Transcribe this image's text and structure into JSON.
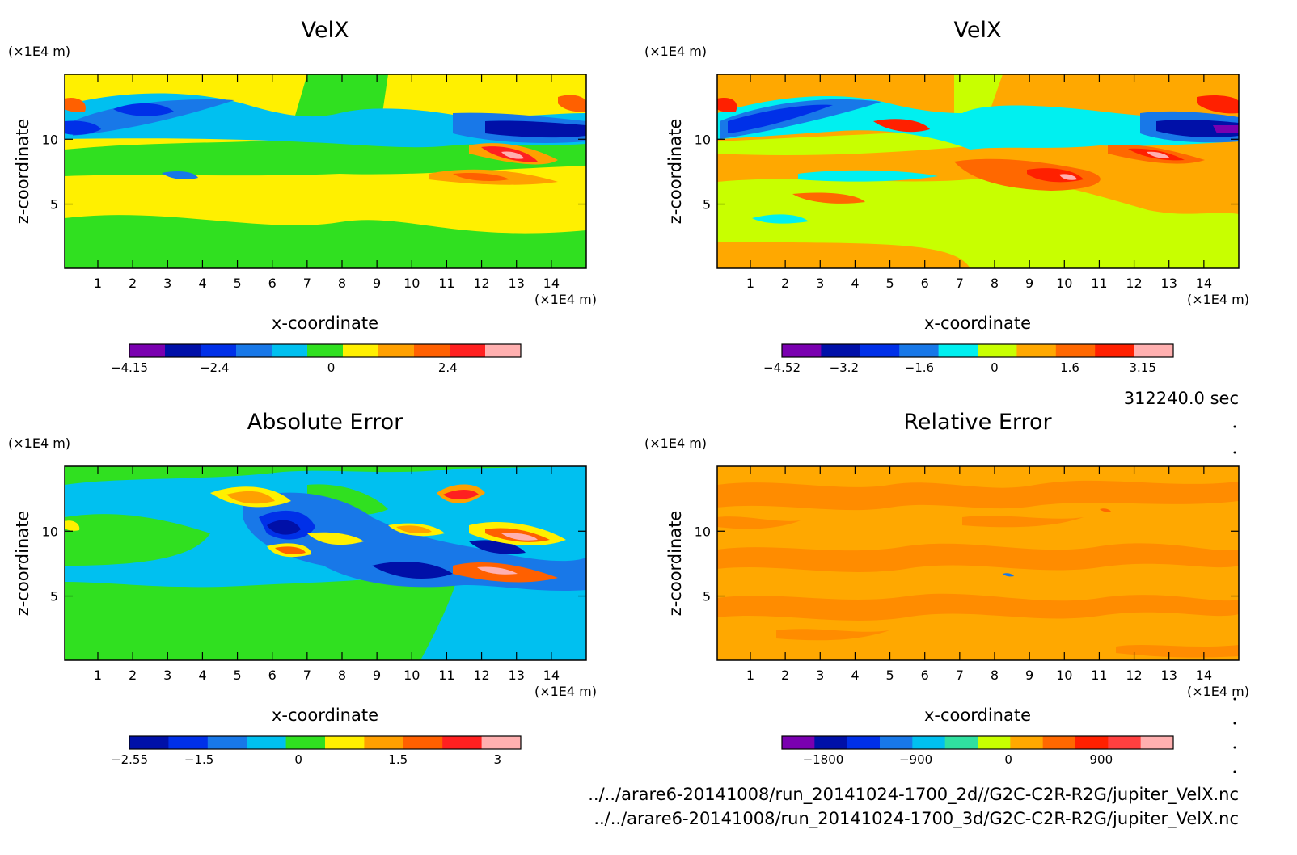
{
  "time_label": "312240.0 sec",
  "files": [
    "../../arare6-20141008/run_20141024-1700_2d//G2C-C2R-R2G/jupiter_VelX.nc",
    "../../arare6-20141008/run_20141024-1700_3d/G2C-C2R-R2G/jupiter_VelX.nc"
  ],
  "chart_data": [
    {
      "type": "heatmap",
      "title": "VelX",
      "xlabel": "x-coordinate",
      "ylabel": "z-coordinate",
      "x_unit": "(×1E4 m)",
      "y_unit": "(×1E4 m)",
      "xlim": [
        0.05,
        15
      ],
      "ylim": [
        0.05,
        15
      ],
      "x_ticks": [
        1,
        2,
        3,
        4,
        5,
        6,
        7,
        8,
        9,
        10,
        11,
        12,
        13,
        14
      ],
      "y_ticks": [
        5,
        10
      ],
      "colorbar": {
        "colors": [
          "#7a00b0",
          "#0010a8",
          "#0030e8",
          "#1878e8",
          "#00c0f0",
          "#30e020",
          "#fff000",
          "#ffa000",
          "#ff6000",
          "#ff2020",
          "#ffb0b0"
        ],
        "tick_values": [
          -4.15,
          -2.4,
          0,
          2.4
        ],
        "tick_labels": [
          "-4.15",
          "-2.4",
          "0",
          "2.4"
        ],
        "range": [
          -4.15,
          3.9
        ]
      }
    },
    {
      "type": "heatmap",
      "title": "VelX",
      "xlabel": "x-coordinate",
      "ylabel": "z-coordinate",
      "x_unit": "(×1E4 m)",
      "y_unit": "(×1E4 m)",
      "xlim": [
        0.05,
        15
      ],
      "ylim": [
        0.05,
        15
      ],
      "x_ticks": [
        1,
        2,
        3,
        4,
        5,
        6,
        7,
        8,
        9,
        10,
        11,
        12,
        13,
        14
      ],
      "y_ticks": [
        5,
        10
      ],
      "colorbar": {
        "colors": [
          "#7a00b0",
          "#0010a8",
          "#0030e8",
          "#1878e8",
          "#00f0f0",
          "#c8ff00",
          "#ffa800",
          "#ff6800",
          "#ff2000",
          "#ffb0b0"
        ],
        "tick_values": [
          -4.52,
          -3.2,
          -1.6,
          0,
          1.6,
          3.15
        ],
        "tick_labels": [
          "-4.52",
          "-3.2",
          "-1.6",
          "0",
          "1.6",
          "3.15"
        ],
        "range": [
          -4.52,
          3.8
        ]
      }
    },
    {
      "type": "heatmap",
      "title": "Absolute Error",
      "xlabel": "x-coordinate",
      "ylabel": "z-coordinate",
      "x_unit": "(×1E4 m)",
      "y_unit": "(×1E4 m)",
      "xlim": [
        0.05,
        15
      ],
      "ylim": [
        0.05,
        15
      ],
      "x_ticks": [
        1,
        2,
        3,
        4,
        5,
        6,
        7,
        8,
        9,
        10,
        11,
        12,
        13,
        14
      ],
      "y_ticks": [
        5,
        10
      ],
      "colorbar": {
        "colors": [
          "#0010a8",
          "#0030e8",
          "#1878e8",
          "#00c0f0",
          "#30e020",
          "#fff000",
          "#ffa000",
          "#ff6000",
          "#ff2020",
          "#ffb0b0"
        ],
        "tick_values": [
          -2.55,
          -1.5,
          0,
          1.5,
          3
        ],
        "tick_labels": [
          "-2.55",
          "-1.5",
          "0",
          "1.5",
          "3"
        ],
        "range": [
          -2.55,
          3.35
        ]
      }
    },
    {
      "type": "heatmap",
      "title": "Relative Error",
      "xlabel": "x-coordinate",
      "ylabel": "z-coordinate",
      "x_unit": "(×1E4 m)",
      "y_unit": "(×1E4 m)",
      "xlim": [
        0.05,
        15
      ],
      "ylim": [
        0.05,
        15
      ],
      "x_ticks": [
        1,
        2,
        3,
        4,
        5,
        6,
        7,
        8,
        9,
        10,
        11,
        12,
        13,
        14
      ],
      "y_ticks": [
        5,
        10
      ],
      "colorbar": {
        "colors": [
          "#7a00b0",
          "#0010a8",
          "#0030e8",
          "#1878e8",
          "#00c0f0",
          "#30e0a0",
          "#c8ff00",
          "#ffa800",
          "#ff6800",
          "#ff2000",
          "#ff4040",
          "#ffb0b0"
        ],
        "tick_values": [
          -1800,
          -900,
          0,
          900
        ],
        "tick_labels": [
          "-1800",
          "-900",
          "0",
          "900"
        ],
        "range": [
          -2200,
          1600
        ]
      }
    }
  ]
}
